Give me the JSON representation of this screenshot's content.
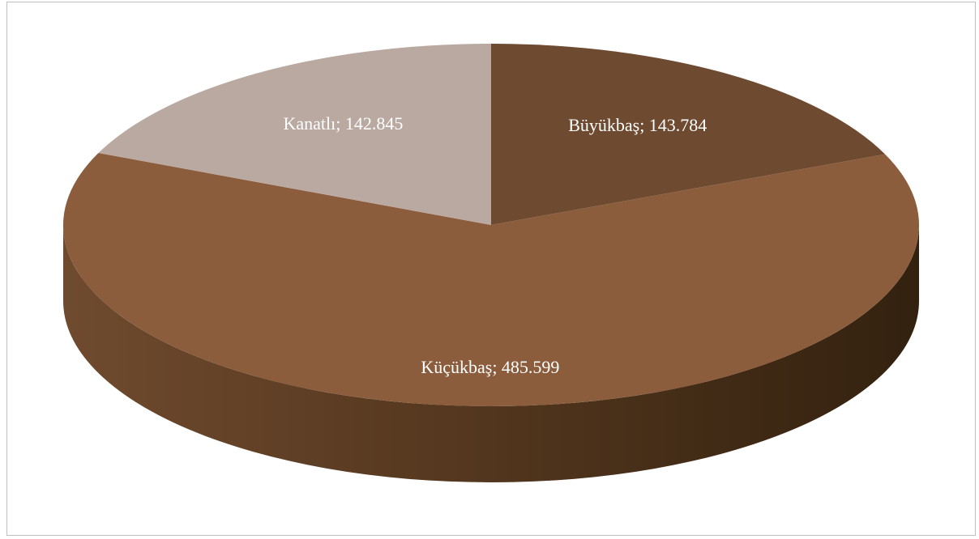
{
  "chart_data": {
    "type": "pie",
    "style": "3d",
    "title": "",
    "slices": [
      {
        "label": "Büyükbaş",
        "value": 143784,
        "display_value": "143.784",
        "text": "Büyükbaş; 143.784",
        "color": "#6e4a30"
      },
      {
        "label": "Küçükbaş",
        "value": 485599,
        "display_value": "485.599",
        "text": "Küçükbaş; 485.599",
        "color": "#8b5d3c"
      },
      {
        "label": "Kanatlı",
        "value": 142845,
        "display_value": "142.845",
        "text": "Kanatlı; 142.845",
        "color": "#b9a9a1"
      }
    ],
    "legend": "none",
    "data_labels": "category; value"
  }
}
